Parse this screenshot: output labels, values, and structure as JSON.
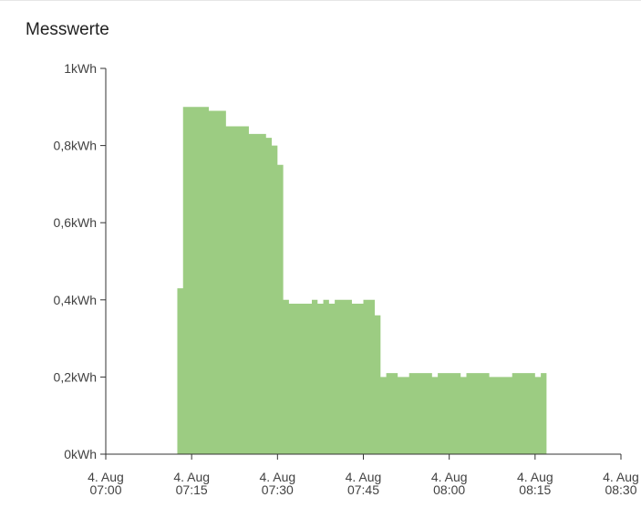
{
  "card": {
    "title": "Messwerte"
  },
  "chart_data": {
    "type": "area",
    "step": true,
    "title": "Messwerte",
    "xlabel": "",
    "ylabel": "",
    "ylim": [
      0,
      1
    ],
    "y_unit": "kWh",
    "y_ticks": [
      {
        "value": 0,
        "label": "0kWh"
      },
      {
        "value": 0.2,
        "label": "0,2kWh"
      },
      {
        "value": 0.4,
        "label": "0,4kWh"
      },
      {
        "value": 0.6,
        "label": "0,6kWh"
      },
      {
        "value": 0.8,
        "label": "0,8kWh"
      },
      {
        "value": 1,
        "label": "1kWh"
      }
    ],
    "x_range": [
      "07:00",
      "08:30"
    ],
    "x_ticks": [
      {
        "time": "07:00",
        "line1": "4. Aug",
        "line2": "07:00"
      },
      {
        "time": "07:15",
        "line1": "4. Aug",
        "line2": "07:15"
      },
      {
        "time": "07:30",
        "line1": "4. Aug",
        "line2": "07:30"
      },
      {
        "time": "07:45",
        "line1": "4. Aug",
        "line2": "07:45"
      },
      {
        "time": "08:00",
        "line1": "4. Aug",
        "line2": "08:00"
      },
      {
        "time": "08:15",
        "line1": "4. Aug",
        "line2": "08:15"
      },
      {
        "time": "08:30",
        "line1": "4. Aug",
        "line2": "08:30"
      }
    ],
    "series": [
      {
        "color": "#9ccc82",
        "x": [
          "07:12",
          "07:12.5",
          "07:13.5",
          "07:18",
          "07:19.5",
          "07:21",
          "07:25",
          "07:28",
          "07:29",
          "07:30",
          "07:31",
          "07:32",
          "07:34",
          "07:36",
          "07:37",
          "07:38",
          "07:39",
          "07:40",
          "07:41",
          "07:43",
          "07:45",
          "07:47",
          "07:48",
          "07:49",
          "07:51",
          "07:53",
          "07:54",
          "07:57",
          "07:58",
          "07:59",
          "08:02",
          "08:03",
          "08:06",
          "08:07",
          "08:11",
          "08:15",
          "08:16",
          "08:17"
        ],
        "values": [
          0.0,
          0.43,
          0.9,
          0.89,
          0.89,
          0.85,
          0.83,
          0.82,
          0.8,
          0.75,
          0.4,
          0.39,
          0.39,
          0.4,
          0.39,
          0.4,
          0.39,
          0.4,
          0.4,
          0.39,
          0.4,
          0.36,
          0.2,
          0.21,
          0.2,
          0.21,
          0.21,
          0.2,
          0.21,
          0.21,
          0.2,
          0.21,
          0.21,
          0.2,
          0.21,
          0.2,
          0.21,
          0.21
        ]
      }
    ]
  }
}
